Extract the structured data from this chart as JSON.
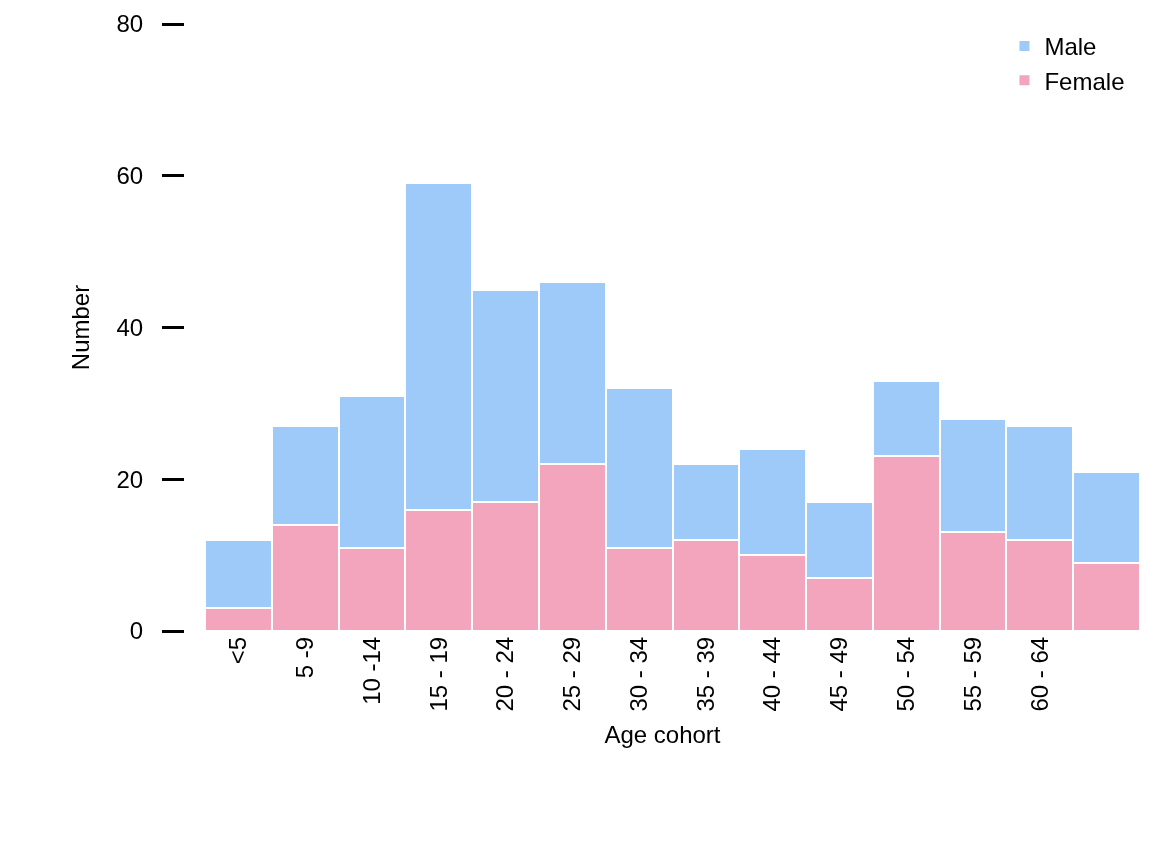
{
  "chart_data": {
    "type": "bar",
    "stacked": true,
    "xlabel": "Age cohort",
    "ylabel": "Number",
    "categories": [
      "<5",
      "5 -9",
      "10 -14",
      "15 - 19",
      "20 - 24",
      "25 - 29",
      "30 - 34",
      "35 - 39",
      "40 - 44",
      "45 - 49",
      "50 - 54",
      "55 - 59",
      "60 - 64",
      null
    ],
    "series": [
      {
        "name": "Female",
        "color": "#f2a5bc",
        "values": [
          3,
          14,
          11,
          16,
          17,
          22,
          11,
          12,
          10,
          7,
          23,
          13,
          12,
          9
        ]
      },
      {
        "name": "Male",
        "color": "#9ecaf9",
        "values": [
          9,
          13,
          20,
          43,
          28,
          24,
          21,
          10,
          14,
          10,
          10,
          15,
          15,
          12
        ]
      }
    ],
    "ylim": [
      0,
      80
    ],
    "yticks": [
      0,
      20,
      40,
      60,
      80
    ],
    "legend": "top right"
  }
}
